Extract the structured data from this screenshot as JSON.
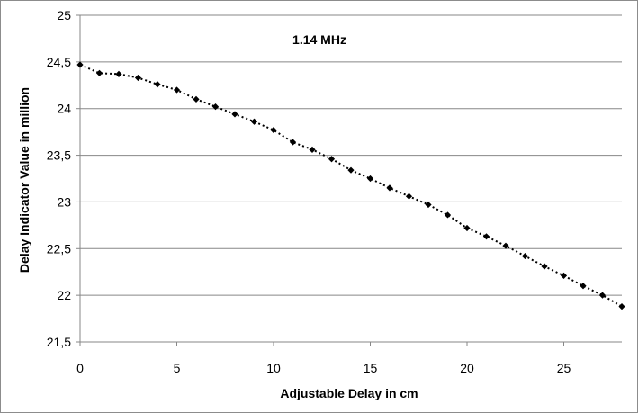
{
  "chart_data": {
    "type": "line",
    "annotation": "1.14 MHz",
    "xlabel": "Adjustable Delay in cm",
    "ylabel": "Delay Indicator Value in million",
    "xlim": [
      0,
      28
    ],
    "ylim": [
      21.5,
      25
    ],
    "x_ticks": [
      0,
      5,
      10,
      15,
      20,
      25
    ],
    "x_tick_labels": [
      "0",
      "5",
      "10",
      "15",
      "20",
      "25"
    ],
    "y_ticks": [
      21.5,
      22,
      22.5,
      23,
      23.5,
      24,
      24.5,
      25
    ],
    "y_tick_labels": [
      "21,5",
      "22",
      "22,5",
      "23",
      "23,5",
      "24",
      "24,5",
      "25"
    ],
    "grid": "horizontal",
    "series": [
      {
        "color": "#000000",
        "line_style": "dotted",
        "marker": "diamond",
        "x": [
          0,
          1,
          2,
          3,
          4,
          5,
          6,
          7,
          8,
          9,
          10,
          11,
          12,
          13,
          14,
          15,
          16,
          17,
          18,
          19,
          20,
          21,
          22,
          23,
          24,
          25,
          26,
          27,
          28
        ],
        "y": [
          24.47,
          24.38,
          24.37,
          24.33,
          24.26,
          24.2,
          24.1,
          24.02,
          23.94,
          23.86,
          23.77,
          23.64,
          23.56,
          23.46,
          23.34,
          23.25,
          23.15,
          23.06,
          22.97,
          22.86,
          22.72,
          22.63,
          22.53,
          22.42,
          22.31,
          22.21,
          22.1,
          22.0,
          21.88
        ]
      }
    ]
  }
}
